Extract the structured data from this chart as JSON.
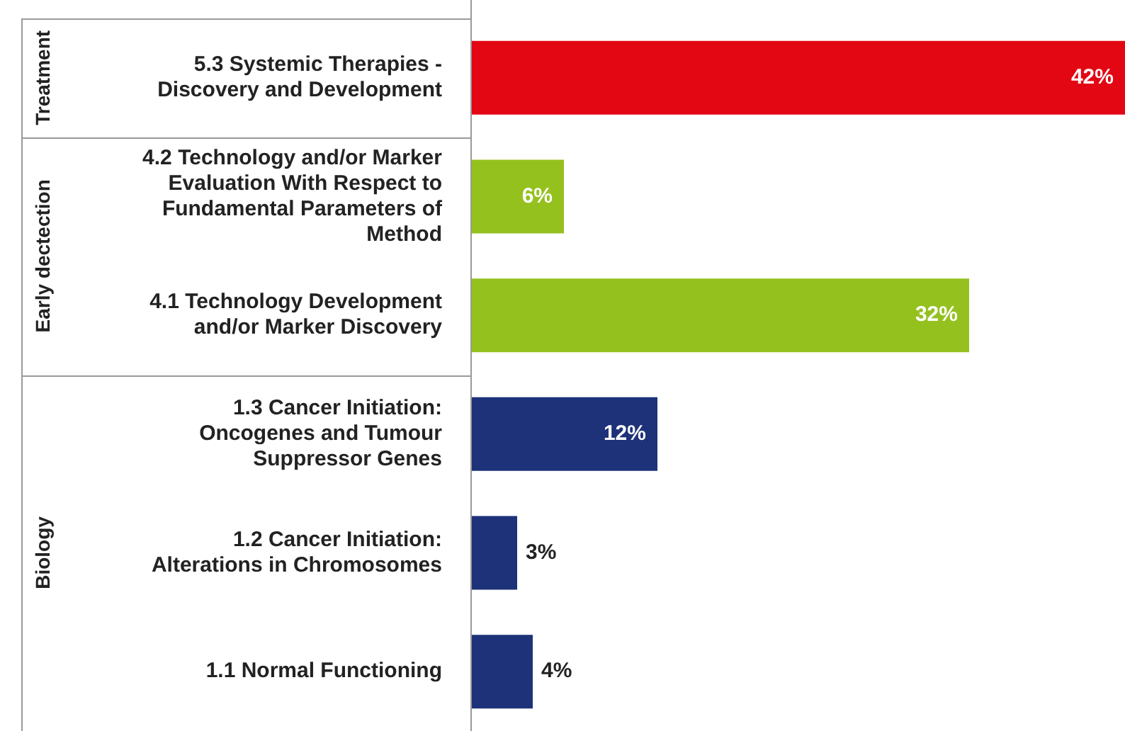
{
  "chart_data": {
    "type": "bar",
    "orientation": "horizontal",
    "categories": [
      "5.3 Systemic Therapies - Discovery and Development",
      "4.2 Technology and/or Marker Evaluation With Respect to Fundamental Parameters of Method",
      "4.1 Technology Development and/or Marker Discovery",
      "1.3 Cancer Initiation: Oncogenes and Tumour Suppressor Genes",
      "1.2 Cancer Initiation: Alterations in Chromosomes",
      "1.1 Normal Functioning"
    ],
    "values": [
      42,
      6,
      32,
      12,
      3,
      4
    ],
    "colors": [
      "#e30613",
      "#95c11f",
      "#95c11f",
      "#1d3278",
      "#1d3278",
      "#1d3278"
    ],
    "value_labels": [
      "42%",
      "6%",
      "32%",
      "12%",
      "3%",
      "4%"
    ],
    "xlim": [
      0,
      42
    ],
    "tick_labels": "y",
    "annotations": [
      "Treatment",
      "Early dectection",
      "Biology"
    ]
  }
}
